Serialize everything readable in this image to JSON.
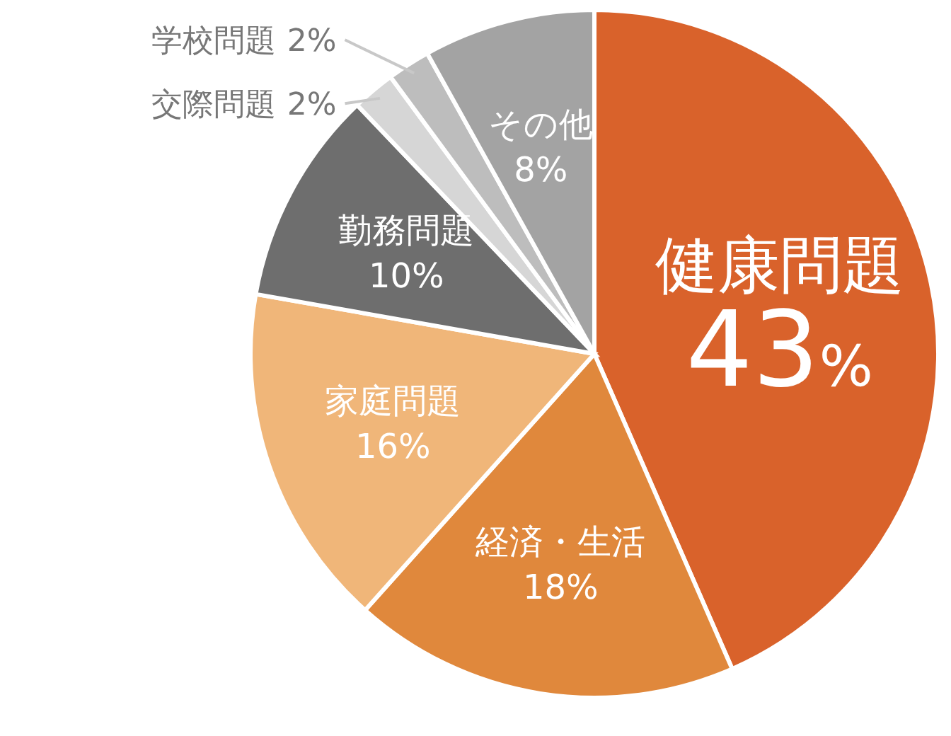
{
  "chart_data": {
    "type": "pie",
    "categories": [
      "健康問題",
      "経済・生活",
      "家庭問題",
      "勤務問題",
      "交際問題",
      "学校問題",
      "その他"
    ],
    "values": [
      43,
      18,
      16,
      10,
      2,
      2,
      8
    ],
    "value_labels": [
      "43%",
      "18%",
      "16%",
      "10%",
      "2%",
      "2%",
      "8%"
    ],
    "colors": [
      "#d9622b",
      "#e0883c",
      "#f0b679",
      "#6e6e6e",
      "#d6d6d6",
      "#bdbdbd",
      "#a3a3a3"
    ]
  }
}
